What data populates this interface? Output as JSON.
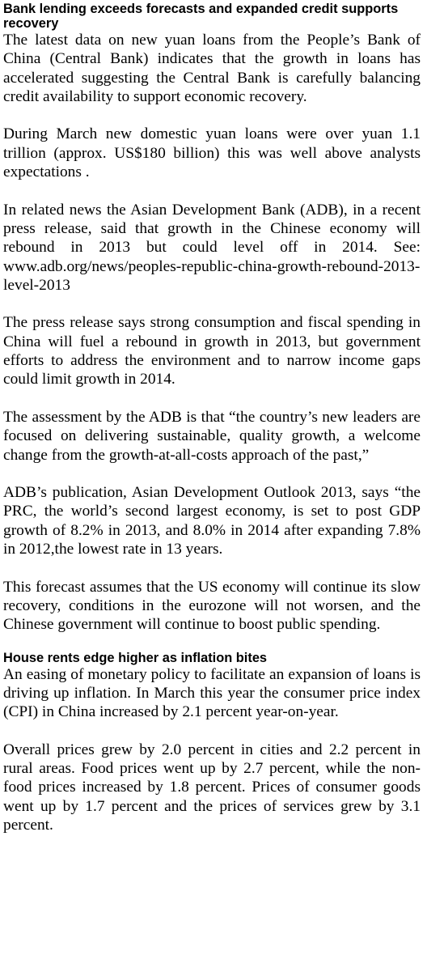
{
  "sections": [
    {
      "heading": "Bank lending exceeds forecasts and expanded credit supports recovery",
      "paragraphs": [
        "The latest data on new yuan loans from the People’s Bank of China (Central Bank) indicates that the growth in loans has accelerated suggesting the Central Bank is carefully balancing credit availability to support economic recovery.",
        "During March new domestic yuan loans were over yuan 1.1 trillion (approx. US$180 billion) this was well above analysts expectations .",
        "In related news the Asian Development Bank (ADB), in a recent press release, said that growth in the Chinese economy will rebound in 2013 but could level off in 2014. See:  www.adb.org/news/peoples-republic-china-growth-rebound-2013-level-2013",
        "The press release says strong consumption and fiscal spending in China will fuel a rebound in growth in 2013, but government efforts to address the environment and to narrow income gaps could limit growth in 2014.",
        "The assessment by the ADB is that “the country’s new leaders are focused on delivering sustainable, quality growth, a welcome change from the growth-at-all-costs approach of the past,”",
        "ADB’s publication, Asian Development Outlook 2013, says “the PRC, the world’s second largest economy, is set to post GDP growth of 8.2% in 2013, and 8.0% in 2014 after expanding 7.8% in 2012,the lowest rate in 13 years.",
        "This forecast assumes that the US economy will continue its slow recovery, conditions in the eurozone will not worsen, and the Chinese government will continue to boost public spending."
      ]
    },
    {
      "heading": "House rents edge higher as inflation bites",
      "paragraphs": [
        "An easing of monetary policy to facilitate an expansion of loans is driving up inflation. In March this year the consumer price index (CPI) in China increased by 2.1 percent year-on-year.",
        "Overall prices grew by 2.0 percent in cities and 2.2 percent in rural areas. Food prices went up by 2.7 percent, while the non-food prices increased by 1.8 percent. Prices of consumer goods went up by 1.7 percent and the prices of services grew by 3.1 percent."
      ]
    }
  ]
}
